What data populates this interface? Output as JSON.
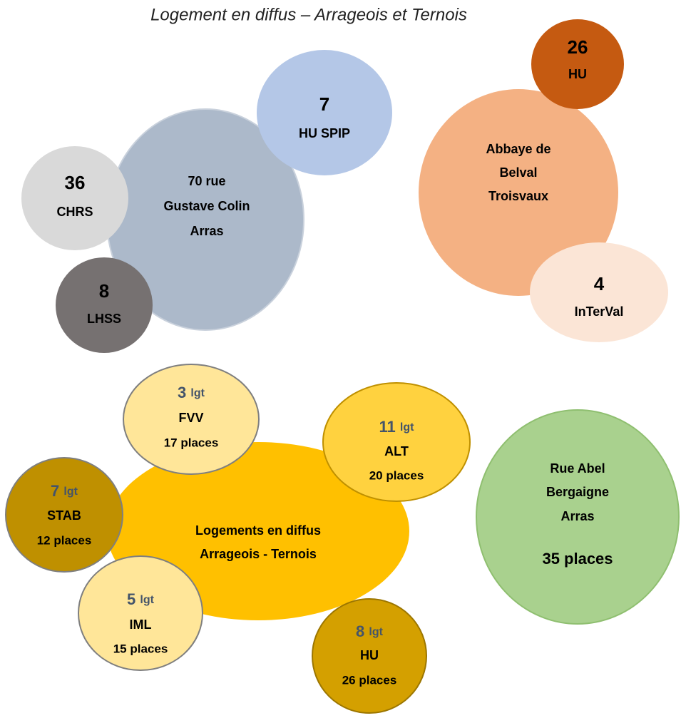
{
  "title": "Logement en diffus – Arrageois et Ternois",
  "nodes": [
    {
      "lines": [
        "70 rue",
        "Gustave Colin",
        "Arras"
      ]
    },
    {
      "number": "7",
      "lines": [
        "HU SPIP"
      ]
    },
    {
      "number": "36",
      "lines": [
        "CHRS"
      ]
    },
    {
      "number": "8",
      "lines": [
        "LHSS"
      ]
    },
    {
      "lines": [
        "Abbaye de",
        "Belval",
        "Troisvaux"
      ]
    },
    {
      "number": "26",
      "lines": [
        "HU"
      ]
    },
    {
      "number": "4",
      "lines": [
        "InTerVal"
      ]
    },
    {
      "lines": [
        "Logements en diffus",
        "Arrageois - Ternois"
      ]
    },
    {
      "number": "3",
      "unit": "lgt",
      "lines": [
        "FVV",
        "17 places"
      ]
    },
    {
      "number": "11",
      "unit": "lgt",
      "lines": [
        "ALT",
        "20 places"
      ]
    },
    {
      "number": "7",
      "unit": "lgt",
      "lines": [
        "STAB",
        "12 places"
      ]
    },
    {
      "number": "5",
      "unit": "lgt",
      "lines": [
        "IML",
        "15 places"
      ]
    },
    {
      "number": "8",
      "unit": "lgt",
      "lines": [
        "HU",
        "26 places"
      ]
    },
    {
      "lines": [
        "Rue Abel",
        "Bergaigne",
        "Arras"
      ],
      "places": "35 places"
    }
  ]
}
